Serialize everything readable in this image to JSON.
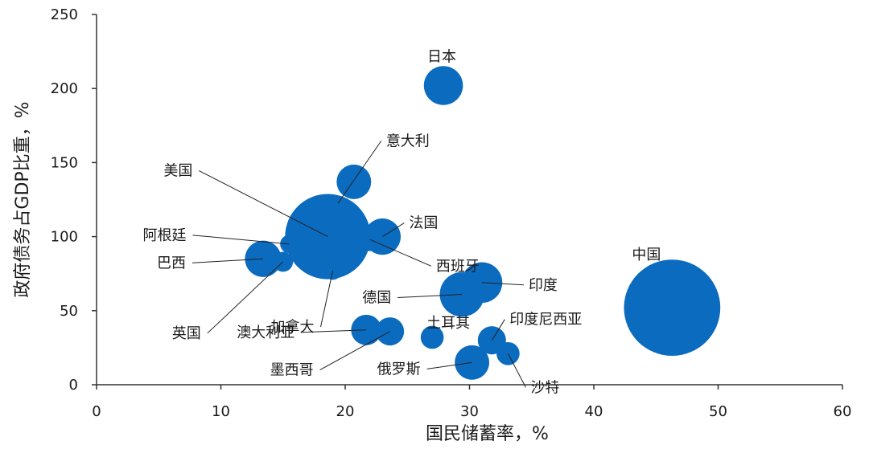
{
  "chart_data": {
    "type": "scatter",
    "subtype": "bubble",
    "xlabel": "国民储蓄率，%",
    "ylabel": "政府债务占GDP比重，%",
    "xlim": [
      0,
      60
    ],
    "ylim": [
      0,
      250
    ],
    "xticks": [
      "0",
      "10",
      "20",
      "30",
      "40",
      "50",
      "60"
    ],
    "yticks": [
      "0",
      "50",
      "100",
      "150",
      "200",
      "250"
    ],
    "grid": false,
    "legend": "none",
    "bubble_color": "#0a6bbf",
    "points": [
      {
        "label": "日本",
        "x": 27.9,
        "y": 202,
        "size": 2.3
      },
      {
        "label": "意大利",
        "x": 20.7,
        "y": 137,
        "size": 1.8
      },
      {
        "label": "美国",
        "x": 18.6,
        "y": 100,
        "size": 11.0
      },
      {
        "label": "阿根廷",
        "x": 15.5,
        "y": 95,
        "size": 0.5
      },
      {
        "label": "法国",
        "x": 23.0,
        "y": 100,
        "size": 2.0
      },
      {
        "label": "西班牙",
        "x": 22.0,
        "y": 98,
        "size": 0.8
      },
      {
        "label": "巴西",
        "x": 13.4,
        "y": 85,
        "size": 2.0
      },
      {
        "label": "英国",
        "x": 15.0,
        "y": 83,
        "size": 0.6
      },
      {
        "label": "加拿大",
        "x": 19.0,
        "y": 77,
        "size": 0.5
      },
      {
        "label": "印度",
        "x": 31.0,
        "y": 69,
        "size": 2.5
      },
      {
        "label": "德国",
        "x": 29.4,
        "y": 61,
        "size": 3.0
      },
      {
        "label": "中国",
        "x": 46.3,
        "y": 52,
        "size": 14.0
      },
      {
        "label": "土耳其",
        "x": 27.0,
        "y": 32,
        "size": 0.8
      },
      {
        "label": "澳大利亚",
        "x": 21.7,
        "y": 37,
        "size": 1.4
      },
      {
        "label": "墨西哥",
        "x": 23.6,
        "y": 36,
        "size": 1.2
      },
      {
        "label": "印度尼西亚",
        "x": 31.8,
        "y": 30,
        "size": 1.2
      },
      {
        "label": "沙特",
        "x": 33.1,
        "y": 21,
        "size": 0.8
      },
      {
        "label": "俄罗斯",
        "x": 30.2,
        "y": 15,
        "size": 1.8
      }
    ]
  }
}
